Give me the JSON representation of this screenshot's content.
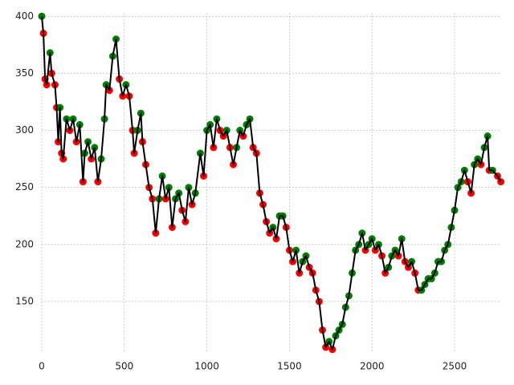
{
  "chart_data": {
    "type": "line",
    "x": [
      0,
      10,
      20,
      30,
      50,
      60,
      80,
      90,
      100,
      110,
      120,
      130,
      150,
      170,
      190,
      210,
      230,
      250,
      260,
      280,
      300,
      320,
      340,
      360,
      380,
      390,
      410,
      430,
      450,
      470,
      490,
      510,
      530,
      550,
      560,
      580,
      600,
      610,
      630,
      650,
      670,
      690,
      710,
      730,
      750,
      770,
      790,
      810,
      830,
      850,
      870,
      890,
      910,
      930,
      960,
      980,
      1000,
      1020,
      1040,
      1060,
      1080,
      1100,
      1120,
      1140,
      1160,
      1180,
      1200,
      1220,
      1240,
      1260,
      1280,
      1300,
      1320,
      1340,
      1360,
      1380,
      1400,
      1420,
      1440,
      1460,
      1480,
      1500,
      1520,
      1540,
      1560,
      1580,
      1600,
      1620,
      1640,
      1660,
      1680,
      1700,
      1720,
      1740,
      1760,
      1780,
      1800,
      1820,
      1840,
      1860,
      1880,
      1900,
      1920,
      1940,
      1960,
      1980,
      2000,
      2020,
      2040,
      2060,
      2080,
      2100,
      2120,
      2140,
      2160,
      2180,
      2200,
      2220,
      2240,
      2260,
      2280,
      2300,
      2320,
      2340,
      2360,
      2380,
      2400,
      2420,
      2440,
      2460,
      2480,
      2500,
      2520,
      2540,
      2560,
      2580,
      2600,
      2620,
      2640,
      2660,
      2680,
      2700,
      2710,
      2730,
      2760,
      2780
    ],
    "values": [
      400,
      385,
      345,
      340,
      368,
      350,
      340,
      320,
      290,
      320,
      280,
      275,
      310,
      300,
      310,
      290,
      305,
      255,
      280,
      290,
      275,
      285,
      255,
      275,
      310,
      340,
      335,
      365,
      380,
      345,
      330,
      340,
      330,
      300,
      280,
      300,
      315,
      290,
      270,
      250,
      240,
      210,
      240,
      260,
      240,
      250,
      215,
      240,
      245,
      230,
      220,
      250,
      235,
      245,
      280,
      260,
      300,
      305,
      285,
      310,
      300,
      295,
      300,
      285,
      270,
      285,
      300,
      295,
      305,
      310,
      285,
      280,
      245,
      235,
      220,
      210,
      215,
      205,
      225,
      225,
      215,
      195,
      185,
      195,
      175,
      185,
      190,
      180,
      175,
      160,
      150,
      125,
      110,
      115,
      108,
      120,
      125,
      130,
      145,
      155,
      175,
      195,
      200,
      210,
      195,
      200,
      205,
      195,
      200,
      190,
      175,
      180,
      190,
      195,
      190,
      205,
      185,
      180,
      185,
      175,
      160,
      160,
      165,
      170,
      170,
      175,
      185,
      185,
      195,
      200,
      215,
      230,
      250,
      255,
      265,
      255,
      245,
      270,
      275,
      270,
      285,
      295,
      265,
      265,
      260,
      255
    ],
    "color": "#000000",
    "up_color": "green",
    "down_color": "red",
    "xlim": [
      0,
      2782
    ],
    "ylim": [
      105,
      403
    ],
    "xticks": [
      0,
      500,
      1000,
      1500,
      2000,
      2500
    ],
    "yticks": [
      150,
      200,
      250,
      300,
      350,
      400
    ],
    "grid": true
  }
}
